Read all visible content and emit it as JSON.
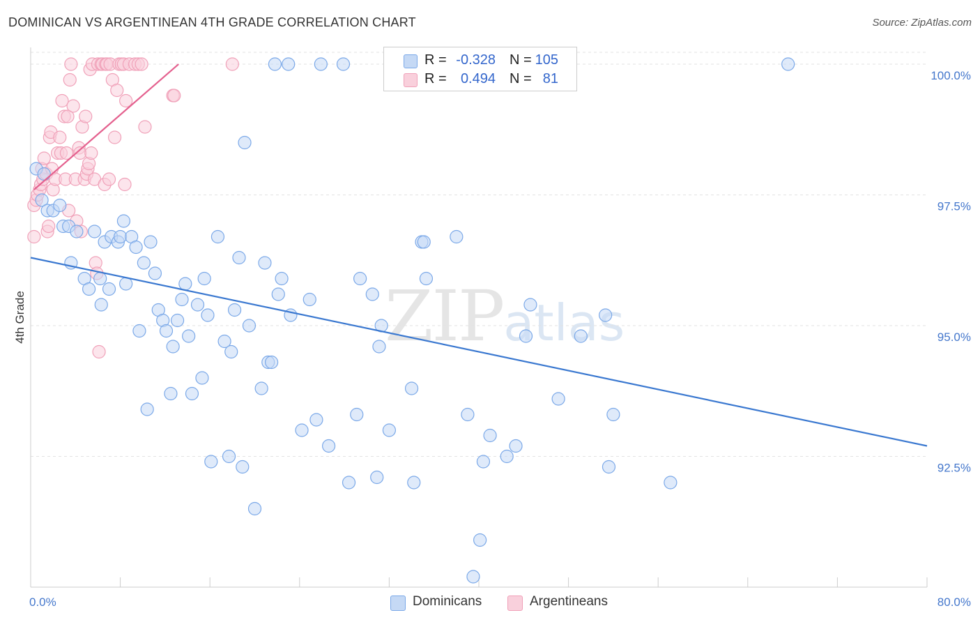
{
  "chart_data": {
    "type": "scatter",
    "title": "DOMINICAN VS ARGENTINEAN 4TH GRADE CORRELATION CHART",
    "source": "Source: ZipAtlas.com",
    "xlabel": "",
    "ylabel": "4th Grade",
    "xlim": [
      0,
      80
    ],
    "ylim": [
      90.0,
      100.4
    ],
    "x_tick_labels": [
      "0.0%",
      "80.0%"
    ],
    "y_ticks": [
      92.5,
      95.0,
      97.5,
      100.0
    ],
    "y_tick_labels": [
      "92.5%",
      "95.0%",
      "97.5%",
      "100.0%"
    ],
    "watermark": {
      "zip": "ZIP",
      "atlas": "atlas"
    },
    "legend": {
      "r_label": "R =",
      "n_label": "N =",
      "entries": [
        {
          "name": "Dominicans",
          "r": "-0.328",
          "n": "105"
        },
        {
          "name": "Argentineans",
          "r": "0.494",
          "n": "81"
        }
      ]
    },
    "series": [
      {
        "name": "Dominicans",
        "color": "#7aa8e8",
        "fill": "#c5d9f5",
        "trend": {
          "x": [
            0,
            80
          ],
          "y": [
            96.3,
            92.7
          ],
          "color": "#3a78d0"
        },
        "points": [
          [
            0.5,
            98.0
          ],
          [
            1.0,
            97.4
          ],
          [
            1.2,
            97.9
          ],
          [
            1.5,
            97.2
          ],
          [
            2.0,
            97.2
          ],
          [
            2.6,
            97.3
          ],
          [
            2.9,
            96.9
          ],
          [
            3.4,
            96.9
          ],
          [
            4.1,
            96.8
          ],
          [
            3.6,
            96.2
          ],
          [
            4.8,
            95.9
          ],
          [
            5.2,
            95.7
          ],
          [
            5.7,
            96.8
          ],
          [
            6.2,
            95.9
          ],
          [
            6.3,
            95.4
          ],
          [
            6.6,
            96.6
          ],
          [
            7.0,
            95.7
          ],
          [
            7.2,
            96.7
          ],
          [
            7.8,
            96.6
          ],
          [
            8.0,
            96.7
          ],
          [
            8.3,
            97.0
          ],
          [
            8.5,
            95.8
          ],
          [
            9.0,
            96.7
          ],
          [
            9.4,
            96.5
          ],
          [
            9.7,
            94.9
          ],
          [
            10.1,
            96.2
          ],
          [
            10.4,
            93.4
          ],
          [
            10.7,
            96.6
          ],
          [
            11.1,
            96.0
          ],
          [
            11.4,
            95.3
          ],
          [
            11.8,
            95.1
          ],
          [
            12.1,
            94.9
          ],
          [
            12.5,
            93.7
          ],
          [
            12.7,
            94.6
          ],
          [
            13.1,
            95.1
          ],
          [
            13.5,
            95.5
          ],
          [
            13.8,
            95.8
          ],
          [
            14.1,
            94.8
          ],
          [
            14.4,
            93.7
          ],
          [
            14.9,
            95.4
          ],
          [
            15.3,
            94.0
          ],
          [
            15.5,
            95.9
          ],
          [
            15.8,
            95.2
          ],
          [
            16.1,
            92.4
          ],
          [
            16.7,
            96.7
          ],
          [
            17.3,
            94.7
          ],
          [
            17.7,
            92.5
          ],
          [
            17.9,
            94.5
          ],
          [
            18.2,
            95.3
          ],
          [
            18.6,
            96.3
          ],
          [
            18.9,
            92.3
          ],
          [
            19.1,
            98.5
          ],
          [
            19.5,
            95.0
          ],
          [
            20.0,
            91.5
          ],
          [
            20.6,
            93.8
          ],
          [
            20.9,
            96.2
          ],
          [
            21.2,
            94.3
          ],
          [
            21.5,
            94.3
          ],
          [
            21.8,
            100.0
          ],
          [
            22.1,
            95.6
          ],
          [
            22.4,
            95.9
          ],
          [
            23.0,
            100.0
          ],
          [
            23.2,
            95.2
          ],
          [
            24.2,
            93.0
          ],
          [
            24.9,
            95.5
          ],
          [
            25.5,
            93.2
          ],
          [
            25.9,
            100.0
          ],
          [
            26.6,
            92.7
          ],
          [
            27.9,
            100.0
          ],
          [
            28.4,
            92.0
          ],
          [
            29.1,
            93.3
          ],
          [
            29.4,
            95.9
          ],
          [
            30.5,
            95.6
          ],
          [
            30.9,
            92.1
          ],
          [
            31.1,
            94.6
          ],
          [
            31.3,
            95.0
          ],
          [
            32.0,
            93.0
          ],
          [
            33.0,
            100.0
          ],
          [
            34.0,
            93.8
          ],
          [
            34.2,
            92.0
          ],
          [
            34.9,
            96.6
          ],
          [
            35.1,
            96.6
          ],
          [
            35.3,
            95.9
          ],
          [
            38.0,
            96.7
          ],
          [
            39.0,
            93.3
          ],
          [
            39.5,
            90.2
          ],
          [
            40.1,
            90.9
          ],
          [
            40.4,
            92.4
          ],
          [
            41.0,
            92.9
          ],
          [
            42.5,
            92.5
          ],
          [
            43.3,
            92.7
          ],
          [
            44.2,
            94.8
          ],
          [
            44.6,
            95.4
          ],
          [
            47.1,
            93.6
          ],
          [
            49.1,
            94.8
          ],
          [
            51.3,
            95.2
          ],
          [
            51.6,
            92.3
          ],
          [
            52.0,
            93.3
          ],
          [
            57.1,
            92.0
          ],
          [
            67.6,
            100.0
          ]
        ]
      },
      {
        "name": "Argentineans",
        "color": "#f0a0b8",
        "fill": "#f9d0dc",
        "trend": {
          "x": [
            0.3,
            13.2
          ],
          "y": [
            97.6,
            100.0
          ],
          "color": "#e4608e"
        },
        "points": [
          [
            0.3,
            96.7
          ],
          [
            0.3,
            97.3
          ],
          [
            0.5,
            97.4
          ],
          [
            0.6,
            97.5
          ],
          [
            0.8,
            97.6
          ],
          [
            0.9,
            97.7
          ],
          [
            1.0,
            98.0
          ],
          [
            1.1,
            97.8
          ],
          [
            1.2,
            98.2
          ],
          [
            1.4,
            97.9
          ],
          [
            1.5,
            96.8
          ],
          [
            1.6,
            96.9
          ],
          [
            1.7,
            98.6
          ],
          [
            1.8,
            98.7
          ],
          [
            1.9,
            98.0
          ],
          [
            2.0,
            97.6
          ],
          [
            2.2,
            97.8
          ],
          [
            2.4,
            98.3
          ],
          [
            2.6,
            98.6
          ],
          [
            2.7,
            98.3
          ],
          [
            2.8,
            99.3
          ],
          [
            3.0,
            99.0
          ],
          [
            3.1,
            97.8
          ],
          [
            3.2,
            98.3
          ],
          [
            3.3,
            99.0
          ],
          [
            3.4,
            97.2
          ],
          [
            3.5,
            99.7
          ],
          [
            3.6,
            100.0
          ],
          [
            3.8,
            99.2
          ],
          [
            4.0,
            97.8
          ],
          [
            4.1,
            97.0
          ],
          [
            4.3,
            98.4
          ],
          [
            4.4,
            98.3
          ],
          [
            4.5,
            96.8
          ],
          [
            4.6,
            98.8
          ],
          [
            4.8,
            97.8
          ],
          [
            4.9,
            99.0
          ],
          [
            5.0,
            97.9
          ],
          [
            5.1,
            98.0
          ],
          [
            5.2,
            98.1
          ],
          [
            5.3,
            99.9
          ],
          [
            5.4,
            98.3
          ],
          [
            5.5,
            100.0
          ],
          [
            5.7,
            97.8
          ],
          [
            5.8,
            96.2
          ],
          [
            5.9,
            96.0
          ],
          [
            6.0,
            100.0
          ],
          [
            6.1,
            94.5
          ],
          [
            6.3,
            100.0
          ],
          [
            6.4,
            100.0
          ],
          [
            6.6,
            97.7
          ],
          [
            6.7,
            100.0
          ],
          [
            6.8,
            100.0
          ],
          [
            7.0,
            97.8
          ],
          [
            7.1,
            100.0
          ],
          [
            7.3,
            99.7
          ],
          [
            7.5,
            98.6
          ],
          [
            7.7,
            99.5
          ],
          [
            7.9,
            100.0
          ],
          [
            8.1,
            100.0
          ],
          [
            8.3,
            100.0
          ],
          [
            8.4,
            97.7
          ],
          [
            8.5,
            99.3
          ],
          [
            8.8,
            100.0
          ],
          [
            9.3,
            100.0
          ],
          [
            9.6,
            100.0
          ],
          [
            9.9,
            100.0
          ],
          [
            10.2,
            98.8
          ],
          [
            12.7,
            99.4
          ],
          [
            12.8,
            99.4
          ],
          [
            18.0,
            100.0
          ]
        ]
      }
    ]
  }
}
